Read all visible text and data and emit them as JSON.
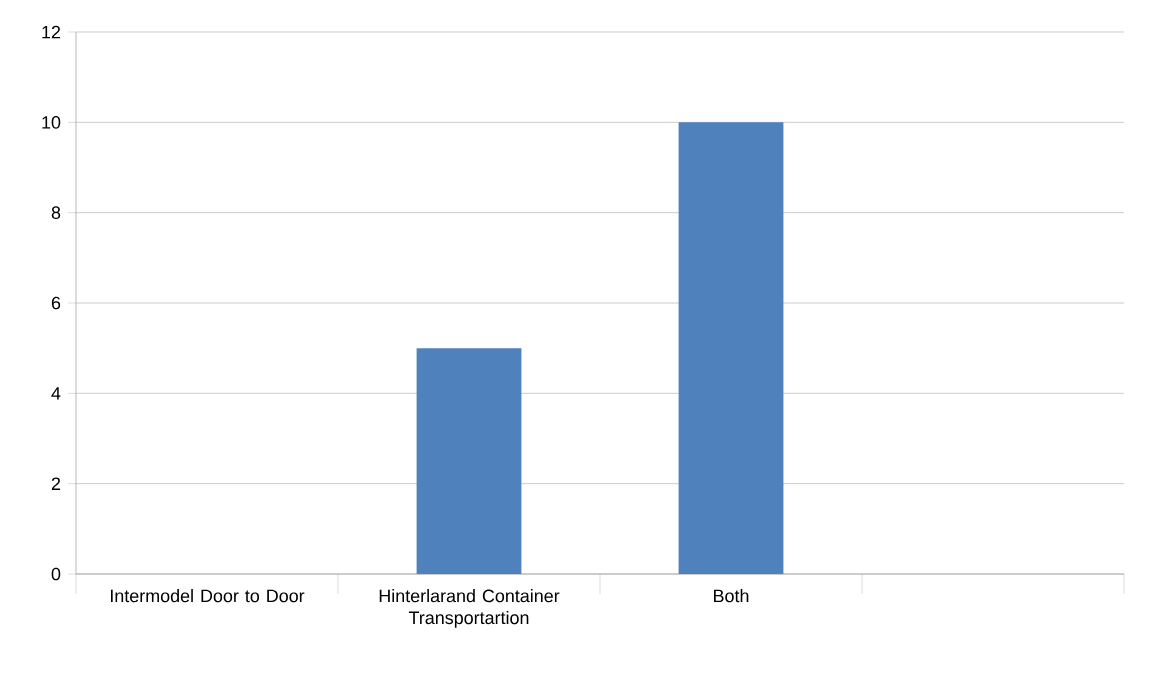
{
  "chart_data": {
    "type": "bar",
    "categories": [
      "Intermodel Door to Door",
      "Hinterlarand Container Transportartion",
      "Both",
      null
    ],
    "values": [
      0,
      5,
      10,
      null
    ],
    "color": "#4f81bd",
    "ylim": [
      0,
      12
    ],
    "yticks": [
      0,
      2,
      4,
      6,
      8,
      10,
      12
    ],
    "grid": "y"
  }
}
